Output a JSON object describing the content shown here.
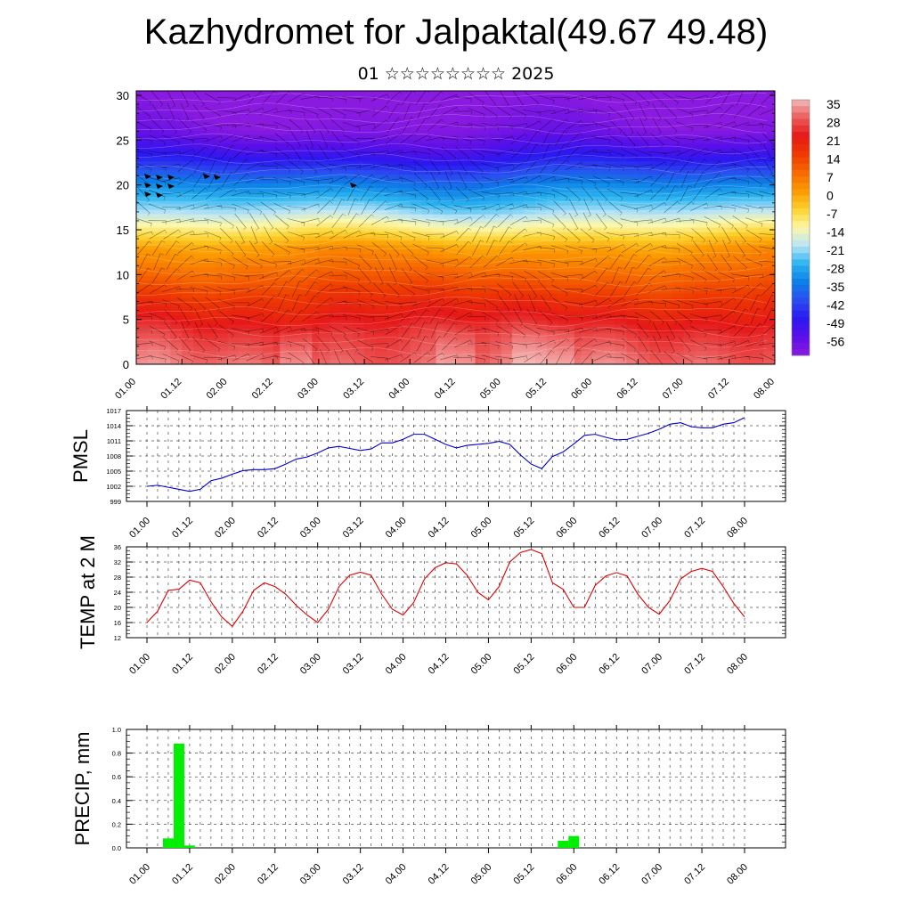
{
  "title": "Kazhydromet for Jalpaktal(49.67 49.48)",
  "subtitle": "01 ☆☆☆☆☆☆☆☆ 2025",
  "time_ticks": [
    "01.00",
    "01.12",
    "02.00",
    "02.12",
    "03.00",
    "03.12",
    "04.00",
    "04.12",
    "05.00",
    "05.12",
    "06.00",
    "06.12",
    "07.00",
    "07.12",
    "08.00"
  ],
  "colors": {
    "pmsl_line": "#0000cc",
    "temp_line": "#dd0000",
    "precip_bar": "#00ee00",
    "cross_section_cold": "#2020e0",
    "cross_section_warm": "#e00000"
  },
  "chart_data": [
    {
      "type": "heatmap",
      "name": "cross-section",
      "yticks": [
        "0",
        "5",
        "10",
        "15",
        "20",
        "25",
        "30"
      ],
      "ylim": [
        0,
        30.5
      ],
      "colorbar_labels": [
        "35",
        "28",
        "21",
        "14",
        "7",
        "0",
        "-7",
        "-14",
        "-21",
        "-28",
        "-35",
        "-42",
        "-49",
        "-56"
      ],
      "colorbar_colors": [
        "#f2b8b8",
        "#ec5a5a",
        "#e61818",
        "#ee3a00",
        "#f76a00",
        "#fc9a00",
        "#fdd22c",
        "#fdf7a8",
        "#b8e4f7",
        "#2bb4f0",
        "#0c7ee6",
        "#2a4cf0",
        "#2a18f0",
        "#5b0fe8",
        "#8a1ae0"
      ],
      "level_profile": [
        {
          "h": 0,
          "t": 30
        },
        {
          "h": 3,
          "t": 26
        },
        {
          "h": 7,
          "t": 18
        },
        {
          "h": 10,
          "t": 10
        },
        {
          "h": 13,
          "t": 2
        },
        {
          "h": 15,
          "t": -8
        },
        {
          "h": 17,
          "t": -18
        },
        {
          "h": 20,
          "t": -30
        },
        {
          "h": 23,
          "t": -44
        },
        {
          "h": 26,
          "t": -54
        },
        {
          "h": 30.5,
          "t": -58
        }
      ]
    },
    {
      "type": "line",
      "name": "pmsl",
      "ylabel": "PMSL",
      "yticks": [
        "1017",
        "1014",
        "1011",
        "1008",
        "1005",
        "1002",
        "999"
      ],
      "ylim": [
        999,
        1017
      ],
      "x_count": 57,
      "values": [
        1002,
        1002.2,
        1001.8,
        1001.4,
        1001,
        1001.4,
        1003.1,
        1003.6,
        1004.4,
        1005.1,
        1005.3,
        1005.3,
        1005.5,
        1006.4,
        1007.4,
        1007.8,
        1008.6,
        1009.6,
        1009.9,
        1009.5,
        1009.1,
        1009.4,
        1010.6,
        1010.6,
        1011.3,
        1012.3,
        1012.3,
        1011.3,
        1010.3,
        1009.6,
        1010.1,
        1010.3,
        1010.5,
        1010.9,
        1010.3,
        1008.2,
        1006.4,
        1005.5,
        1007.9,
        1008.8,
        1010.4,
        1012.1,
        1012.3,
        1011.7,
        1011.2,
        1011.3,
        1011.9,
        1012.5,
        1013.3,
        1014.3,
        1014.6,
        1013.8,
        1013.6,
        1013.6,
        1014.3,
        1014.6,
        1015.6
      ]
    },
    {
      "type": "line",
      "name": "temperature",
      "ylabel": "TEMP at 2 M",
      "yticks": [
        "36",
        "32",
        "28",
        "24",
        "20",
        "16",
        "12"
      ],
      "ylim": [
        12,
        36
      ],
      "x_count": 57,
      "values": [
        16,
        19,
        24.5,
        24.8,
        27.2,
        26.5,
        21.5,
        17.5,
        15,
        19,
        24.5,
        26.5,
        25.5,
        23.5,
        20.5,
        18,
        16,
        19.5,
        25.5,
        28.5,
        29.3,
        28.5,
        23.5,
        19.5,
        18,
        21.3,
        27.5,
        30.5,
        31.8,
        31.5,
        28.5,
        24,
        22,
        25.5,
        32,
        34.5,
        35.3,
        34.2,
        26.5,
        24.8,
        20,
        20,
        25.8,
        28.3,
        29.2,
        28.3,
        23.5,
        20,
        18.2,
        21.8,
        27.5,
        29.5,
        30.3,
        29.5,
        25.5,
        21,
        17.5
      ]
    },
    {
      "type": "bar",
      "name": "precipitation",
      "ylabel": "PRECIP, mm",
      "yticks": [
        "1.0",
        "0.8",
        "0.6",
        "0.4",
        "0.2",
        "0.0"
      ],
      "ylim": [
        0,
        1.0
      ],
      "bars": [
        {
          "x": 2,
          "value": 0.08
        },
        {
          "x": 3,
          "value": 0.88
        },
        {
          "x": 4,
          "value": 0.02
        },
        {
          "x": 39,
          "value": 0.06
        },
        {
          "x": 40,
          "value": 0.1
        }
      ]
    }
  ]
}
